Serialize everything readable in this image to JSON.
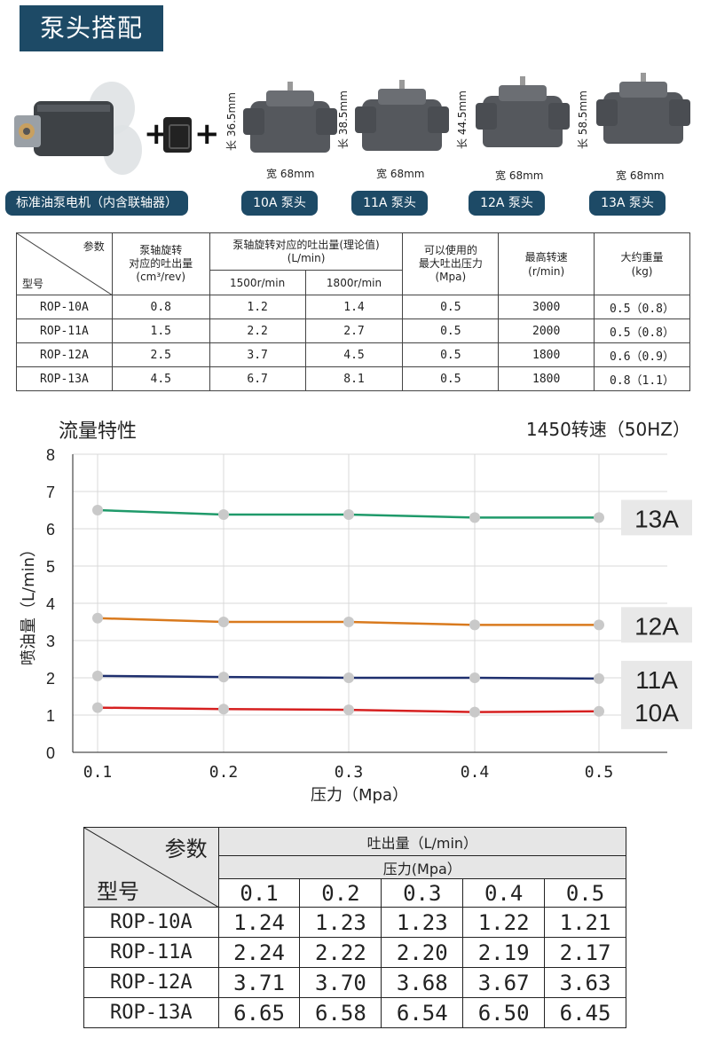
{
  "header": {
    "title": "泵头搭配"
  },
  "products": {
    "motor_label": "标准油泵电机（内含联轴器）",
    "plus": "+",
    "pumps": [
      {
        "label": "10A 泵头",
        "length": "长 36.5mm",
        "width": "宽 68mm"
      },
      {
        "label": "11A 泵头",
        "length": "长 38.5mm",
        "width": "宽 68mm"
      },
      {
        "label": "12A 泵头",
        "length": "长 44.5mm",
        "width": "宽 68mm"
      },
      {
        "label": "13A 泵头",
        "length": "长 58.5mm",
        "width": "宽 68mm"
      }
    ]
  },
  "spec_table": {
    "corner_param": "参数",
    "corner_model": "型号",
    "h_disp": "泵轴旋转\n对应的吐出量\n(cm³/rev)",
    "h_flow": "泵轴旋转对应的吐出量(理论值)\n(L/min)",
    "h_1500": "1500r/min",
    "h_1800": "1800r/min",
    "h_press": "可以使用的\n最大吐出压力\n(Mpa)",
    "h_speed": "最高转速\n(r/min)",
    "h_weight": "大约重量\n(kg)",
    "rows": [
      {
        "model": "ROP-10A",
        "disp": "0.8",
        "f1500": "1.2",
        "f1800": "1.4",
        "press": "0.5",
        "speed": "3000",
        "weight": "0.5（0.8）"
      },
      {
        "model": "ROP-11A",
        "disp": "1.5",
        "f1500": "2.2",
        "f1800": "2.7",
        "press": "0.5",
        "speed": "2000",
        "weight": "0.5（0.8）"
      },
      {
        "model": "ROP-12A",
        "disp": "2.5",
        "f1500": "3.7",
        "f1800": "4.5",
        "press": "0.5",
        "speed": "1800",
        "weight": "0.6（0.9）"
      },
      {
        "model": "ROP-13A",
        "disp": "4.5",
        "f1500": "6.7",
        "f1800": "8.1",
        "press": "0.5",
        "speed": "1800",
        "weight": "0.8（1.1）"
      }
    ]
  },
  "chart_data": {
    "type": "line",
    "title": "流量特性",
    "subtitle": "1450转速（50HZ）",
    "xlabel": "压力（Mpa）",
    "ylabel": "喷油量（L/min）",
    "x": [
      0.1,
      0.2,
      0.3,
      0.4,
      0.5
    ],
    "x_ticks": [
      "0.1",
      "0.2",
      "0.3",
      "0.4",
      "0.5"
    ],
    "y_ticks": [
      "0",
      "1",
      "2",
      "3",
      "4",
      "5",
      "6",
      "7",
      "8"
    ],
    "ylim": [
      0,
      8
    ],
    "grid": true,
    "series": [
      {
        "name": "13A",
        "color": "#1f9a6a",
        "values": [
          6.5,
          6.38,
          6.38,
          6.3,
          6.3
        ]
      },
      {
        "name": "12A",
        "color": "#d97a1e",
        "values": [
          3.6,
          3.5,
          3.5,
          3.42,
          3.42
        ]
      },
      {
        "name": "11A",
        "color": "#1e2f6e",
        "values": [
          2.05,
          2.02,
          2.0,
          2.0,
          1.98
        ]
      },
      {
        "name": "10A",
        "color": "#d62020",
        "values": [
          1.2,
          1.16,
          1.14,
          1.08,
          1.1
        ]
      }
    ]
  },
  "flow_table": {
    "corner_param": "参数",
    "corner_model": "型号",
    "h_flow": "吐出量（L/min）",
    "h_press": "压力(Mpa）",
    "pressures": [
      "0.1",
      "0.2",
      "0.3",
      "0.4",
      "0.5"
    ],
    "rows": [
      {
        "model": "ROP-10A",
        "v": [
          "1.24",
          "1.23",
          "1.23",
          "1.22",
          "1.21"
        ]
      },
      {
        "model": "ROP-11A",
        "v": [
          "2.24",
          "2.22",
          "2.20",
          "2.19",
          "2.17"
        ]
      },
      {
        "model": "ROP-12A",
        "v": [
          "3.71",
          "3.70",
          "3.68",
          "3.67",
          "3.63"
        ]
      },
      {
        "model": "ROP-13A",
        "v": [
          "6.65",
          "6.58",
          "6.54",
          "6.50",
          "6.45"
        ]
      }
    ]
  }
}
